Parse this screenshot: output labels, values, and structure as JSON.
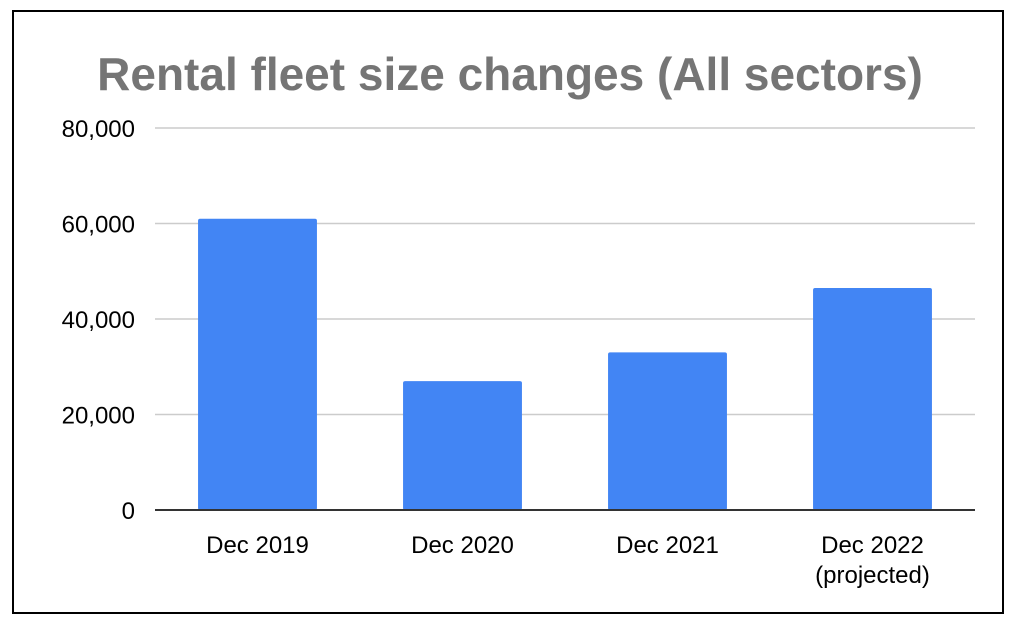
{
  "chart_data": {
    "type": "bar",
    "title": "Rental fleet size changes (All sectors)",
    "xlabel": "",
    "ylabel": "",
    "categories": [
      [
        "Dec 2019"
      ],
      [
        "Dec 2020"
      ],
      [
        "Dec 2021"
      ],
      [
        "Dec 2022",
        "(projected)"
      ]
    ],
    "values": [
      61000,
      27000,
      33000,
      46500
    ],
    "ylim": [
      0,
      80000
    ],
    "yticks": [
      0,
      20000,
      40000,
      60000,
      80000
    ],
    "ytick_labels": [
      "0",
      "20,000",
      "40,000",
      "60,000",
      "80,000"
    ],
    "grid": true,
    "legend": "none",
    "colors": {
      "bar": "#4285f4",
      "title": "#757575",
      "grid": "#cccccc",
      "axis": "#333333",
      "frame": "#000000"
    }
  }
}
